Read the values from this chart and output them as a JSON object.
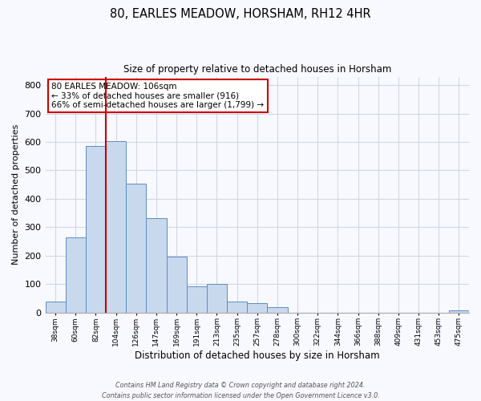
{
  "title": "80, EARLES MEADOW, HORSHAM, RH12 4HR",
  "subtitle": "Size of property relative to detached houses in Horsham",
  "xlabel": "Distribution of detached houses by size in Horsham",
  "ylabel": "Number of detached properties",
  "bar_labels": [
    "38sqm",
    "60sqm",
    "82sqm",
    "104sqm",
    "126sqm",
    "147sqm",
    "169sqm",
    "191sqm",
    "213sqm",
    "235sqm",
    "257sqm",
    "278sqm",
    "300sqm",
    "322sqm",
    "344sqm",
    "366sqm",
    "388sqm",
    "409sqm",
    "431sqm",
    "453sqm",
    "475sqm"
  ],
  "bar_values": [
    38,
    265,
    585,
    603,
    452,
    332,
    197,
    91,
    100,
    38,
    32,
    17,
    0,
    0,
    0,
    0,
    0,
    0,
    0,
    0,
    8
  ],
  "bar_color": "#c8d9ee",
  "bar_edge_color": "#5b8dc0",
  "ylim": [
    0,
    830
  ],
  "yticks": [
    0,
    100,
    200,
    300,
    400,
    500,
    600,
    700,
    800
  ],
  "vline_index": 3,
  "property_line_label": "80 EARLES MEADOW: 106sqm",
  "annotation_line1": "← 33% of detached houses are smaller (916)",
  "annotation_line2": "66% of semi-detached houses are larger (1,799) →",
  "vline_color": "#cc0000",
  "annotation_box_edgecolor": "#cc0000",
  "grid_color": "#d0d8e4",
  "background_color": "#f8f8ff",
  "footer1": "Contains HM Land Registry data © Crown copyright and database right 2024.",
  "footer2": "Contains public sector information licensed under the Open Government Licence v3.0."
}
